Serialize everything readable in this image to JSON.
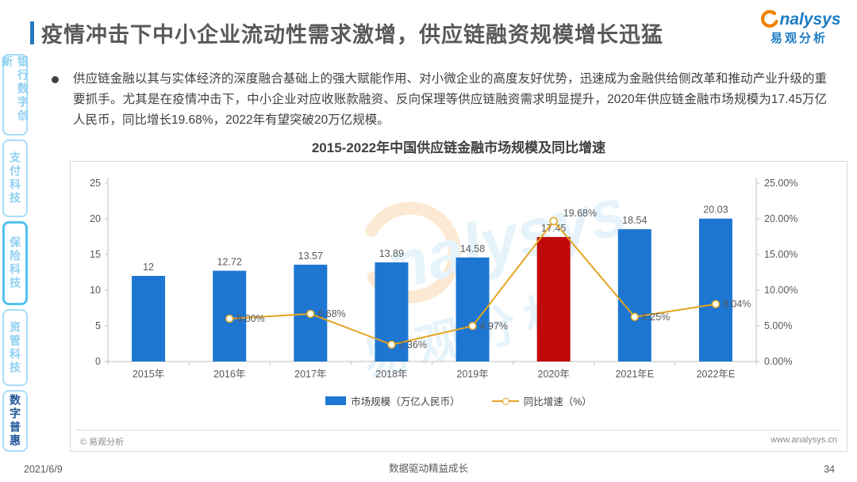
{
  "header": {
    "title": "疫情冲击下中小企业流动性需求激增，供应链融资规模增长迅猛",
    "accent_color": "#2878BE"
  },
  "logo": {
    "brand": "nalysys",
    "cn": "易观分析",
    "swoosh_color": "#F08300",
    "text_color": "#1B7CC3"
  },
  "sidebar": {
    "items": [
      {
        "label": "银行数字创新"
      },
      {
        "label": "支付科技"
      },
      {
        "label": "保险科技"
      },
      {
        "label": "资管科技"
      },
      {
        "label": "数字普惠"
      }
    ]
  },
  "body": {
    "bullet_text": "供应链金融以其与实体经济的深度融合基础上的强大赋能作用、对小微企业的高度友好优势，迅速成为金融供给侧改革和推动产业升级的重要抓手。尤其是在疫情冲击下，中小企业对应收账款融资、反向保理等供应链融资需求明显提升，2020年供应链金融市场规模为17.45万亿人民币，同比增长19.68%，2022年有望突破20万亿规模。"
  },
  "chart_data": {
    "type": "bar",
    "title": "2015-2022年中国供应链金融市场规模及同比增速",
    "categories": [
      "2015年",
      "2016年",
      "2017年",
      "2018年",
      "2019年",
      "2020年",
      "2021年E",
      "2022年E"
    ],
    "series": [
      {
        "name": "市场规模（万亿人民币）",
        "type": "bar",
        "axis": "left",
        "values": [
          12,
          12.72,
          13.57,
          13.89,
          14.58,
          17.45,
          18.54,
          20.03
        ],
        "labels": [
          "12",
          "12.72",
          "13.57",
          "13.89",
          "14.58",
          "17.45",
          "18.54",
          "20.03"
        ],
        "color": "#1D76D2",
        "highlight_index": 5,
        "highlight_color": "#C00909"
      },
      {
        "name": "同比增速（%）",
        "type": "line",
        "axis": "right",
        "values": [
          null,
          6.0,
          6.68,
          2.36,
          4.97,
          19.68,
          6.25,
          8.04
        ],
        "labels": [
          null,
          "6.00%",
          "6.68%",
          "2.36%",
          "4.97%",
          "19.68%",
          "6.25%",
          "8.04%"
        ],
        "color": "#E3A321",
        "marker": "open-circle"
      }
    ],
    "left_axis": {
      "min": 0,
      "max": 25,
      "ticks": [
        "0",
        "5",
        "10",
        "15",
        "20",
        "25"
      ]
    },
    "right_axis": {
      "min": 0,
      "max": 25,
      "ticks": [
        "0.00%",
        "5.00%",
        "10.00%",
        "15.00%",
        "20.00%",
        "25.00%"
      ]
    },
    "grid": false,
    "legend_position": "bottom"
  },
  "chart_footer": {
    "copyright": "© 易观分析",
    "website": "www.analysys.cn"
  },
  "watermark": {
    "text": "nalysys",
    "cn": "易观分析"
  },
  "page_footer": {
    "date": "2021/6/9",
    "center": "数据驱动精益成长",
    "page_number": "34"
  }
}
